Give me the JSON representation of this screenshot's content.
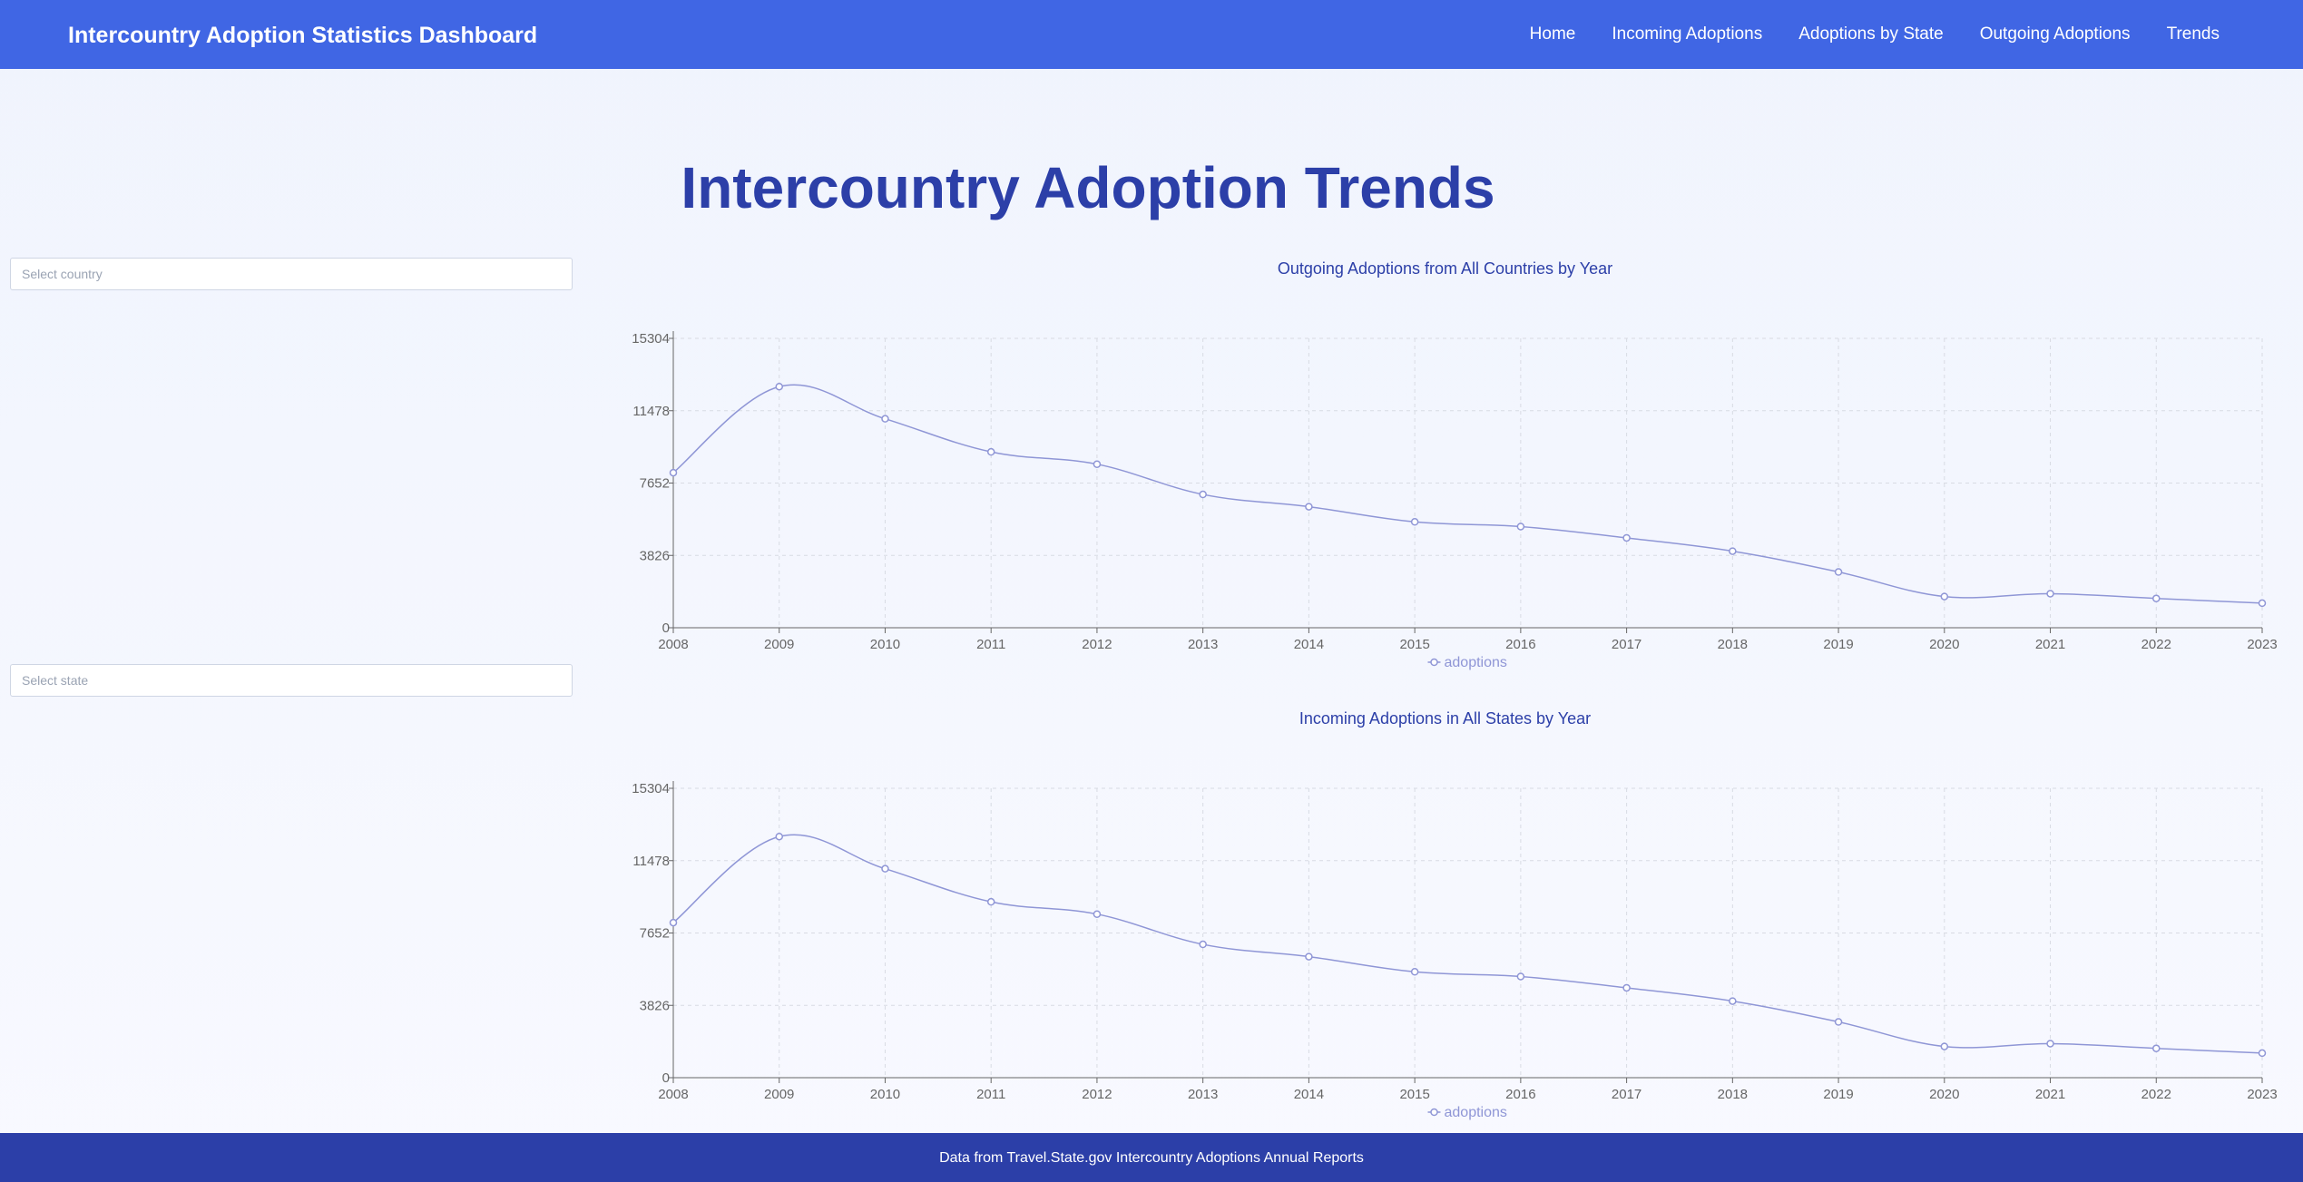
{
  "header": {
    "title": "Intercountry Adoption Statistics Dashboard",
    "nav": [
      "Home",
      "Incoming Adoptions",
      "Adoptions by State",
      "Outgoing Adoptions",
      "Trends"
    ]
  },
  "main": {
    "title": "Intercountry Adoption Trends",
    "country_select": {
      "placeholder": "Select country"
    },
    "state_select": {
      "placeholder": "Select state"
    }
  },
  "footer": {
    "text": "Data from Travel.State.gov Intercountry Adoptions Annual Reports"
  },
  "colors": {
    "header": "#4066e4",
    "title": "#2c3fa8",
    "line": "#8f96d6",
    "footer": "#2c3fa8"
  },
  "chart_data": [
    {
      "type": "line",
      "title": "Outgoing Adoptions from All Countries by Year",
      "x": [
        "2008",
        "2009",
        "2010",
        "2011",
        "2012",
        "2013",
        "2014",
        "2015",
        "2016",
        "2017",
        "2018",
        "2019",
        "2020",
        "2021",
        "2022",
        "2023"
      ],
      "series": [
        {
          "name": "adoptions",
          "values": [
            8200,
            12750,
            11050,
            9300,
            8650,
            7050,
            6400,
            5600,
            5350,
            4750,
            4050,
            2950,
            1650,
            1800,
            1550,
            1300
          ]
        }
      ],
      "yticks": [
        0,
        3826,
        7652,
        11478,
        15304
      ],
      "ylim": [
        0,
        15304
      ],
      "grid": true,
      "legend": "bottom-center"
    },
    {
      "type": "line",
      "title": "Incoming Adoptions in All States by Year",
      "x": [
        "2008",
        "2009",
        "2010",
        "2011",
        "2012",
        "2013",
        "2014",
        "2015",
        "2016",
        "2017",
        "2018",
        "2019",
        "2020",
        "2021",
        "2022",
        "2023"
      ],
      "series": [
        {
          "name": "adoptions",
          "values": [
            8200,
            12750,
            11050,
            9300,
            8650,
            7050,
            6400,
            5600,
            5350,
            4750,
            4050,
            2950,
            1650,
            1800,
            1550,
            1300
          ]
        }
      ],
      "yticks": [
        0,
        3826,
        7652,
        11478,
        15304
      ],
      "ylim": [
        0,
        15304
      ],
      "grid": true,
      "legend": "bottom-center"
    }
  ]
}
